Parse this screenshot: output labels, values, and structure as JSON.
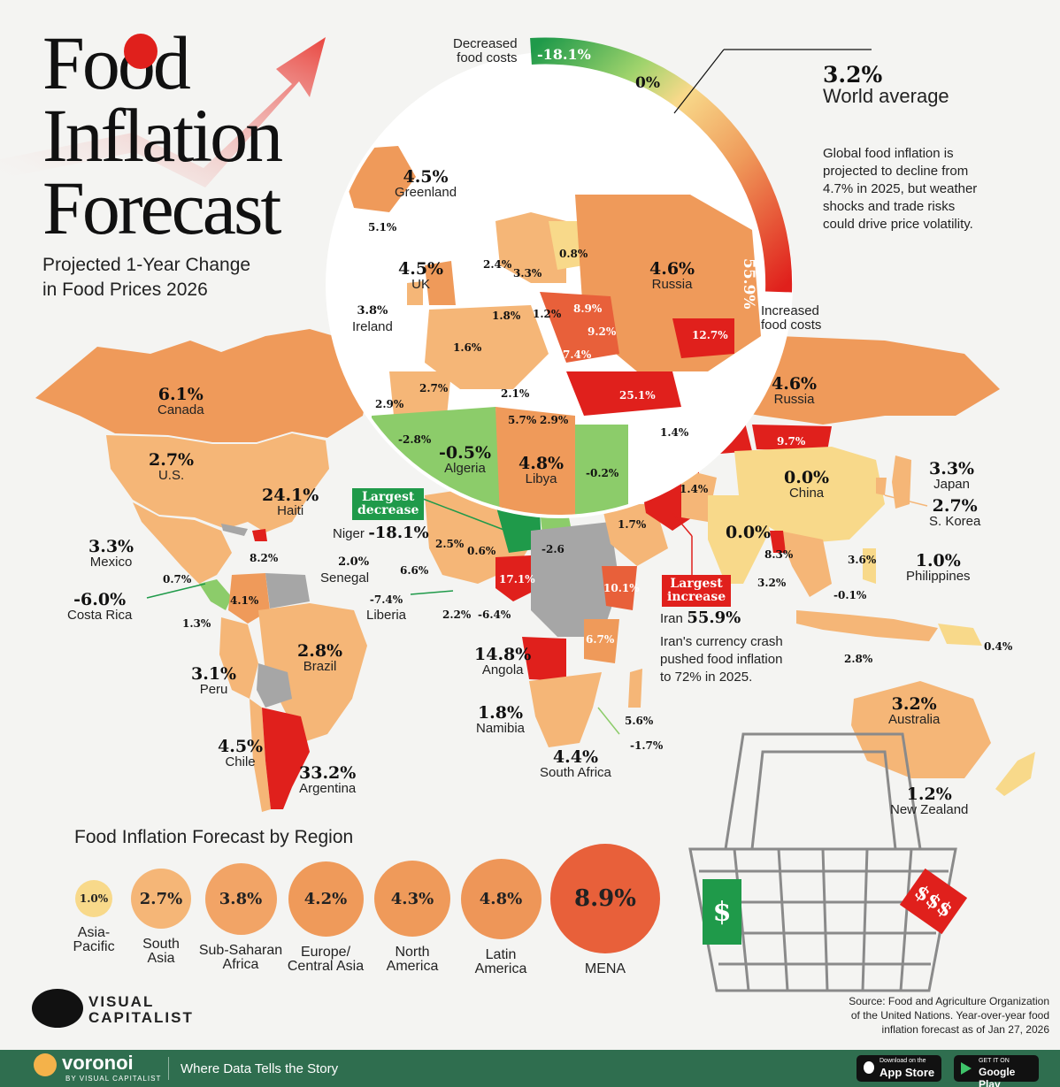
{
  "title": {
    "line1": "Food",
    "line2": "Inflation",
    "line3": "Forecast"
  },
  "subtitle": {
    "line1": "Projected 1-Year Change",
    "line2": "in Food Prices 2026"
  },
  "colors": {
    "decrease_strong": "#1f9a4a",
    "decrease": "#8ccc6a",
    "neutral": "#f8d98a",
    "low": "#f5b677",
    "mid": "#ef9a5a",
    "high": "#e8603a",
    "very_high": "#e0201c",
    "no_data": "#a6a6a6",
    "footer": "#2f6e4f"
  },
  "scale": {
    "decreased_label_1": "Decreased",
    "decreased_label_2": "food costs",
    "min_value": "-18.1%",
    "zero_value": "0%",
    "max_value": "55.9%",
    "increased_label_1": "Increased",
    "increased_label_2": "food costs"
  },
  "world_average": {
    "value": "3.2%",
    "label": "World average"
  },
  "global_note": [
    "Global food inflation is",
    "projected to decline from",
    "4.7% in 2025, but weather",
    "shocks and trade risks",
    "could drive price volatility."
  ],
  "callouts": {
    "largest_decrease": {
      "tag_line1": "Largest",
      "tag_line2": "decrease",
      "country": "Niger",
      "value": "-18.1%"
    },
    "largest_increase": {
      "tag_line1": "Largest",
      "tag_line2": "increase",
      "country": "Iran",
      "value": "55.9%",
      "note": [
        "Iran's currency crash",
        "pushed food inflation",
        "to 72% in 2025."
      ]
    }
  },
  "countries": {
    "canada": {
      "value": "6.1%",
      "label": "Canada"
    },
    "us": {
      "value": "2.7%",
      "label": "U.S."
    },
    "mexico": {
      "value": "3.3%",
      "label": "Mexico"
    },
    "haiti": {
      "value": "24.1%",
      "label": "Haiti"
    },
    "costa_rica": {
      "value": "-6.0%",
      "label": "Costa Rica"
    },
    "peru": {
      "value": "3.1%",
      "label": "Peru"
    },
    "brazil": {
      "value": "2.8%",
      "label": "Brazil"
    },
    "chile": {
      "value": "4.5%",
      "label": "Chile"
    },
    "argentina": {
      "value": "33.2%",
      "label": "Argentina"
    },
    "senegal": {
      "value": "2.0%",
      "label": "Senegal"
    },
    "liberia": {
      "value": "-7.4%",
      "label": "Liberia"
    },
    "angola": {
      "value": "14.8%",
      "label": "Angola"
    },
    "namibia": {
      "value": "1.8%",
      "label": "Namibia"
    },
    "south_africa": {
      "value": "4.4%",
      "label": "South Africa"
    },
    "russia_inset": {
      "value": "4.6%",
      "label": "Russia"
    },
    "russia_main": {
      "value": "4.6%",
      "label": "Russia"
    },
    "china": {
      "value": "0.0%",
      "label": "China"
    },
    "japan": {
      "value": "3.3%",
      "label": "Japan"
    },
    "s_korea": {
      "value": "2.7%",
      "label": "S. Korea"
    },
    "philippines": {
      "value": "1.0%",
      "label": "Philippines"
    },
    "australia": {
      "value": "3.2%",
      "label": "Australia"
    },
    "new_zealand": {
      "value": "1.2%",
      "label": "New Zealand"
    },
    "india": {
      "value": "0.0%"
    },
    "greenland": {
      "value": "4.5%",
      "label": "Greenland"
    },
    "uk": {
      "value": "4.5%",
      "label": "UK"
    },
    "ireland": {
      "value": "3.8%",
      "label": "Ireland"
    },
    "algeria": {
      "value": "-0.5%",
      "label": "Algeria"
    },
    "libya": {
      "value": "4.8%",
      "label": "Libya"
    }
  },
  "small_values": {
    "iceland": "5.1%",
    "norway": "2.4%",
    "sweden": "3.3%",
    "finland": "0.8%",
    "germany": "1.8%",
    "poland": "1.2%",
    "belarus": "8.9%",
    "ukraine": "9.2%",
    "france": "1.6%",
    "romania": "7.4%",
    "kazakh_region": "12.7%",
    "spain": "2.7%",
    "portugal": "2.9%",
    "italy": "2.1%",
    "turkey": "25.1%",
    "tunisia": "5.7%",
    "greece": "2.9%",
    "morocco": "-2.8%",
    "egypt": "-0.2%",
    "saudi": "1.7%",
    "jordan": "1.4%",
    "pakistan": "1.4%",
    "mongolia": "9.7%",
    "myanmar": "8.3%",
    "sri_lanka": "3.2%",
    "vietnam": "3.6%",
    "cambodia": "-0.1%",
    "indonesia": "2.8%",
    "png": "0.4%",
    "madagascar": "5.6%",
    "lesotho": "-1.7%",
    "tanzania": "6.7%",
    "ethiopia": "10.1%",
    "sudan_region": "17.1%",
    "chad_region": "-2.6",
    "mali": "2.5%",
    "burkina": "0.6%",
    "guinea": "6.6%",
    "ghana": "2.2%",
    "nigeria_region": "-6.4%",
    "colombia": "4.1%",
    "ecuador": "1.3%",
    "panama": "0.7%",
    "dominican": "8.2%"
  },
  "regions_title": "Food Inflation Forecast by Region",
  "regions": [
    {
      "name": "Asia-\nPacific",
      "value": "1.0%",
      "num": 1.0
    },
    {
      "name": "South\nAsia",
      "value": "2.7%",
      "num": 2.7
    },
    {
      "name": "Sub-Saharan\nAfrica",
      "value": "3.8%",
      "num": 3.8
    },
    {
      "name": "Europe/\nCentral Asia",
      "value": "4.2%",
      "num": 4.2
    },
    {
      "name": "North\nAmerica",
      "value": "4.3%",
      "num": 4.3
    },
    {
      "name": "Latin\nAmerica",
      "value": "4.8%",
      "num": 4.8
    },
    {
      "name": "MENA",
      "value": "8.9%",
      "num": 8.9
    }
  ],
  "price_tag_green": "$",
  "price_tag_red": "$$$",
  "brand": {
    "line1": "VISUAL",
    "line2": "CAPITALIST"
  },
  "source": [
    "Source: Food and Agriculture Organization",
    "of the United Nations. Year-over-year food",
    "inflation forecast as of Jan 27, 2026"
  ],
  "footer": {
    "brand": "voronoi",
    "brand_sub": "BY VISUAL CAPITALIST",
    "tagline": "Where Data Tells the Story",
    "app_store_small": "Download on the",
    "app_store": "App Store",
    "google_small": "GET IT ON",
    "google": "Google Play"
  }
}
